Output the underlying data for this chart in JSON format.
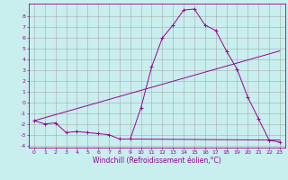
{
  "xlabel": "Windchill (Refroidissement éolien,°C)",
  "background_color": "#c8eeee",
  "grid_color": "#aaaaaa",
  "line_color": "#990099",
  "xlim": [
    -0.5,
    23.5
  ],
  "ylim": [
    -4.2,
    9.2
  ],
  "xticks": [
    0,
    1,
    2,
    3,
    4,
    5,
    6,
    7,
    8,
    9,
    10,
    11,
    12,
    13,
    14,
    15,
    16,
    17,
    18,
    19,
    20,
    21,
    22,
    23
  ],
  "yticks": [
    -4,
    -3,
    -2,
    -1,
    0,
    1,
    2,
    3,
    4,
    5,
    6,
    7,
    8
  ],
  "line1_x": [
    0,
    1,
    2,
    3,
    4,
    5,
    6,
    7,
    8,
    9,
    10,
    11,
    12,
    13,
    14,
    15,
    16,
    17,
    18,
    19,
    20,
    21,
    22,
    23
  ],
  "line1_y": [
    -1.7,
    -2.0,
    -1.9,
    -2.8,
    -2.7,
    -2.8,
    -2.9,
    -3.0,
    -3.4,
    -3.4,
    -0.5,
    3.3,
    6.0,
    7.2,
    8.6,
    8.7,
    7.2,
    6.7,
    4.8,
    3.1,
    0.5,
    -1.5,
    -3.5,
    -3.7
  ],
  "line2_x": [
    0,
    23
  ],
  "line2_y": [
    -1.7,
    4.8
  ],
  "line3_x": [
    9,
    23
  ],
  "line3_y": [
    -3.4,
    -3.5
  ],
  "tick_fontsize": 4.5,
  "xlabel_fontsize": 5.5
}
